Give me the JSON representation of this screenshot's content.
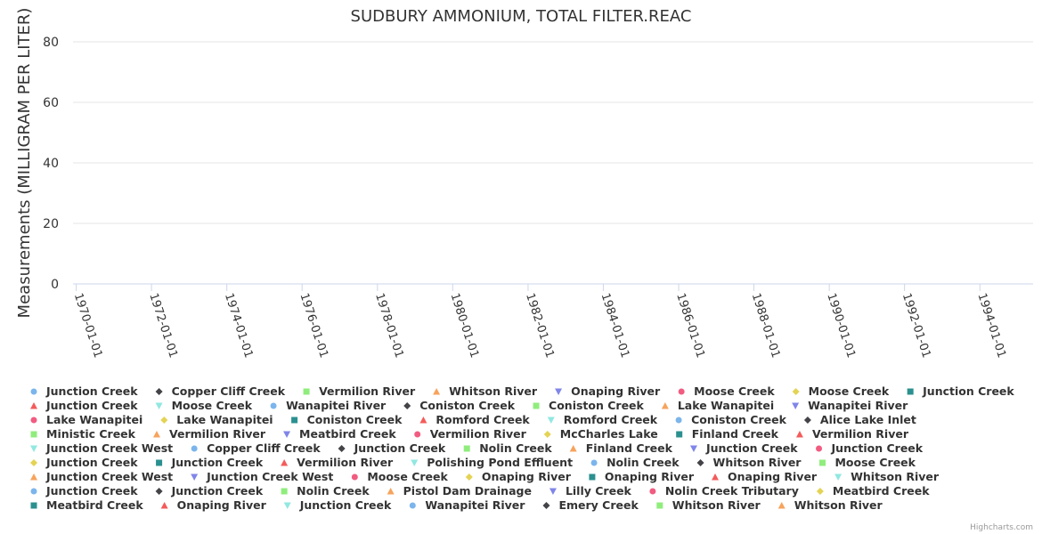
{
  "chart_data": {
    "type": "scatter",
    "title": "SUDBURY AMMONIUM, TOTAL FILTER.REAC",
    "xlabel": "",
    "ylabel": "Measurements (MILLIGRAM PER LITER)",
    "x_type": "datetime",
    "xlim": [
      "1969-12-01",
      "1995-06-01"
    ],
    "ylim": [
      0,
      80
    ],
    "y_ticks": [
      0,
      20,
      40,
      60,
      80
    ],
    "x_ticks": [
      "1970-01-01",
      "1972-01-01",
      "1974-01-01",
      "1976-01-01",
      "1978-01-01",
      "1980-01-01",
      "1982-01-01",
      "1984-01-01",
      "1986-01-01",
      "1988-01-01",
      "1990-01-01",
      "1992-01-01",
      "1994-01-01"
    ],
    "grid": true,
    "legend_position": "bottom",
    "series": [
      {
        "name": "Junction Creek",
        "symbol": "circle",
        "color": "#7cb5ec",
        "points": []
      },
      {
        "name": "Copper Cliff Creek",
        "symbol": "diamond",
        "color": "#434348",
        "points": []
      },
      {
        "name": "Vermilion River",
        "symbol": "square",
        "color": "#90ed7d",
        "points": []
      },
      {
        "name": "Whitson River",
        "symbol": "triangle",
        "color": "#f7a35c",
        "points": []
      },
      {
        "name": "Onaping River",
        "symbol": "triangle-down",
        "color": "#8085e9",
        "points": []
      },
      {
        "name": "Moose Creek",
        "symbol": "circle",
        "color": "#f15c80",
        "points": []
      },
      {
        "name": "Moose Creek",
        "symbol": "diamond",
        "color": "#e4d354",
        "points": []
      },
      {
        "name": "Junction Creek",
        "symbol": "square",
        "color": "#2b908f",
        "points": []
      },
      {
        "name": "Junction Creek",
        "symbol": "triangle",
        "color": "#f45b5b",
        "points": []
      },
      {
        "name": "Moose Creek",
        "symbol": "triangle-down",
        "color": "#91e8e1",
        "points": []
      },
      {
        "name": "Wanapitei River",
        "symbol": "circle",
        "color": "#7cb5ec",
        "points": []
      },
      {
        "name": "Coniston Creek",
        "symbol": "diamond",
        "color": "#434348",
        "points": []
      },
      {
        "name": "Coniston Creek",
        "symbol": "square",
        "color": "#90ed7d",
        "points": []
      },
      {
        "name": "Lake Wanapitei",
        "symbol": "triangle",
        "color": "#f7a35c",
        "points": []
      },
      {
        "name": "Wanapitei River",
        "symbol": "triangle-down",
        "color": "#8085e9",
        "points": []
      },
      {
        "name": "Lake Wanapitei",
        "symbol": "circle",
        "color": "#f15c80",
        "points": []
      },
      {
        "name": "Lake Wanapitei",
        "symbol": "diamond",
        "color": "#e4d354",
        "points": []
      },
      {
        "name": "Coniston Creek",
        "symbol": "square",
        "color": "#2b908f",
        "points": []
      },
      {
        "name": "Romford Creek",
        "symbol": "triangle",
        "color": "#f45b5b",
        "points": []
      },
      {
        "name": "Romford Creek",
        "symbol": "triangle-down",
        "color": "#91e8e1",
        "points": []
      },
      {
        "name": "Coniston Creek",
        "symbol": "circle",
        "color": "#7cb5ec",
        "points": []
      },
      {
        "name": "Alice Lake Inlet",
        "symbol": "diamond",
        "color": "#434348",
        "points": []
      },
      {
        "name": "Ministic Creek",
        "symbol": "square",
        "color": "#90ed7d",
        "points": []
      },
      {
        "name": "Vermilion River",
        "symbol": "triangle",
        "color": "#f7a35c",
        "points": []
      },
      {
        "name": "Meatbird Creek",
        "symbol": "triangle-down",
        "color": "#8085e9",
        "points": []
      },
      {
        "name": "Vermilion River",
        "symbol": "circle",
        "color": "#f15c80",
        "points": []
      },
      {
        "name": "McCharles Lake",
        "symbol": "diamond",
        "color": "#e4d354",
        "points": []
      },
      {
        "name": "Finland Creek",
        "symbol": "square",
        "color": "#2b908f",
        "points": []
      },
      {
        "name": "Vermilion River",
        "symbol": "triangle",
        "color": "#f45b5b",
        "points": []
      },
      {
        "name": "Junction Creek West",
        "symbol": "triangle-down",
        "color": "#91e8e1",
        "points": []
      },
      {
        "name": "Copper Cliff Creek",
        "symbol": "circle",
        "color": "#7cb5ec",
        "points": []
      },
      {
        "name": "Junction Creek",
        "symbol": "diamond",
        "color": "#434348",
        "points": []
      },
      {
        "name": "Nolin Creek",
        "symbol": "square",
        "color": "#90ed7d",
        "points": []
      },
      {
        "name": "Finland Creek",
        "symbol": "triangle",
        "color": "#f7a35c",
        "points": []
      },
      {
        "name": "Junction Creek",
        "symbol": "triangle-down",
        "color": "#8085e9",
        "points": []
      },
      {
        "name": "Junction Creek",
        "symbol": "circle",
        "color": "#f15c80",
        "points": []
      },
      {
        "name": "Junction Creek",
        "symbol": "diamond",
        "color": "#e4d354",
        "points": []
      },
      {
        "name": "Junction Creek",
        "symbol": "square",
        "color": "#2b908f",
        "points": []
      },
      {
        "name": "Vermilion River",
        "symbol": "triangle",
        "color": "#f45b5b",
        "points": []
      },
      {
        "name": "Polishing Pond Effluent",
        "symbol": "triangle-down",
        "color": "#91e8e1",
        "points": []
      },
      {
        "name": "Nolin Creek",
        "symbol": "circle",
        "color": "#7cb5ec",
        "points": []
      },
      {
        "name": "Whitson River",
        "symbol": "diamond",
        "color": "#434348",
        "points": []
      },
      {
        "name": "Moose Creek",
        "symbol": "square",
        "color": "#90ed7d",
        "points": []
      },
      {
        "name": "Junction Creek West",
        "symbol": "triangle",
        "color": "#f7a35c",
        "points": []
      },
      {
        "name": "Junction Creek West",
        "symbol": "triangle-down",
        "color": "#8085e9",
        "points": []
      },
      {
        "name": "Moose Creek",
        "symbol": "circle",
        "color": "#f15c80",
        "points": []
      },
      {
        "name": "Onaping River",
        "symbol": "diamond",
        "color": "#e4d354",
        "points": []
      },
      {
        "name": "Onaping River",
        "symbol": "square",
        "color": "#2b908f",
        "points": []
      },
      {
        "name": "Onaping River",
        "symbol": "triangle",
        "color": "#f45b5b",
        "points": []
      },
      {
        "name": "Whitson River",
        "symbol": "triangle-down",
        "color": "#91e8e1",
        "points": []
      },
      {
        "name": "Junction Creek",
        "symbol": "circle",
        "color": "#7cb5ec",
        "points": []
      },
      {
        "name": "Junction Creek",
        "symbol": "diamond",
        "color": "#434348",
        "points": []
      },
      {
        "name": "Nolin Creek",
        "symbol": "square",
        "color": "#90ed7d",
        "points": []
      },
      {
        "name": "Pistol Dam Drainage",
        "symbol": "triangle",
        "color": "#f7a35c",
        "points": []
      },
      {
        "name": "Lilly Creek",
        "symbol": "triangle-down",
        "color": "#8085e9",
        "points": []
      },
      {
        "name": "Nolin Creek Tributary",
        "symbol": "circle",
        "color": "#f15c80",
        "points": []
      },
      {
        "name": "Meatbird Creek",
        "symbol": "diamond",
        "color": "#e4d354",
        "points": []
      },
      {
        "name": "Meatbird Creek",
        "symbol": "square",
        "color": "#2b908f",
        "points": []
      },
      {
        "name": "Onaping River",
        "symbol": "triangle",
        "color": "#f45b5b",
        "points": []
      },
      {
        "name": "Junction Creek",
        "symbol": "triangle-down",
        "color": "#91e8e1",
        "points": []
      },
      {
        "name": "Wanapitei River",
        "symbol": "circle",
        "color": "#7cb5ec",
        "points": []
      },
      {
        "name": "Emery Creek",
        "symbol": "diamond",
        "color": "#434348",
        "points": []
      },
      {
        "name": "Whitson River",
        "symbol": "square",
        "color": "#90ed7d",
        "points": []
      },
      {
        "name": "Whitson River",
        "symbol": "triangle",
        "color": "#f7a35c",
        "points": []
      }
    ]
  },
  "credits": "Highcharts.com"
}
